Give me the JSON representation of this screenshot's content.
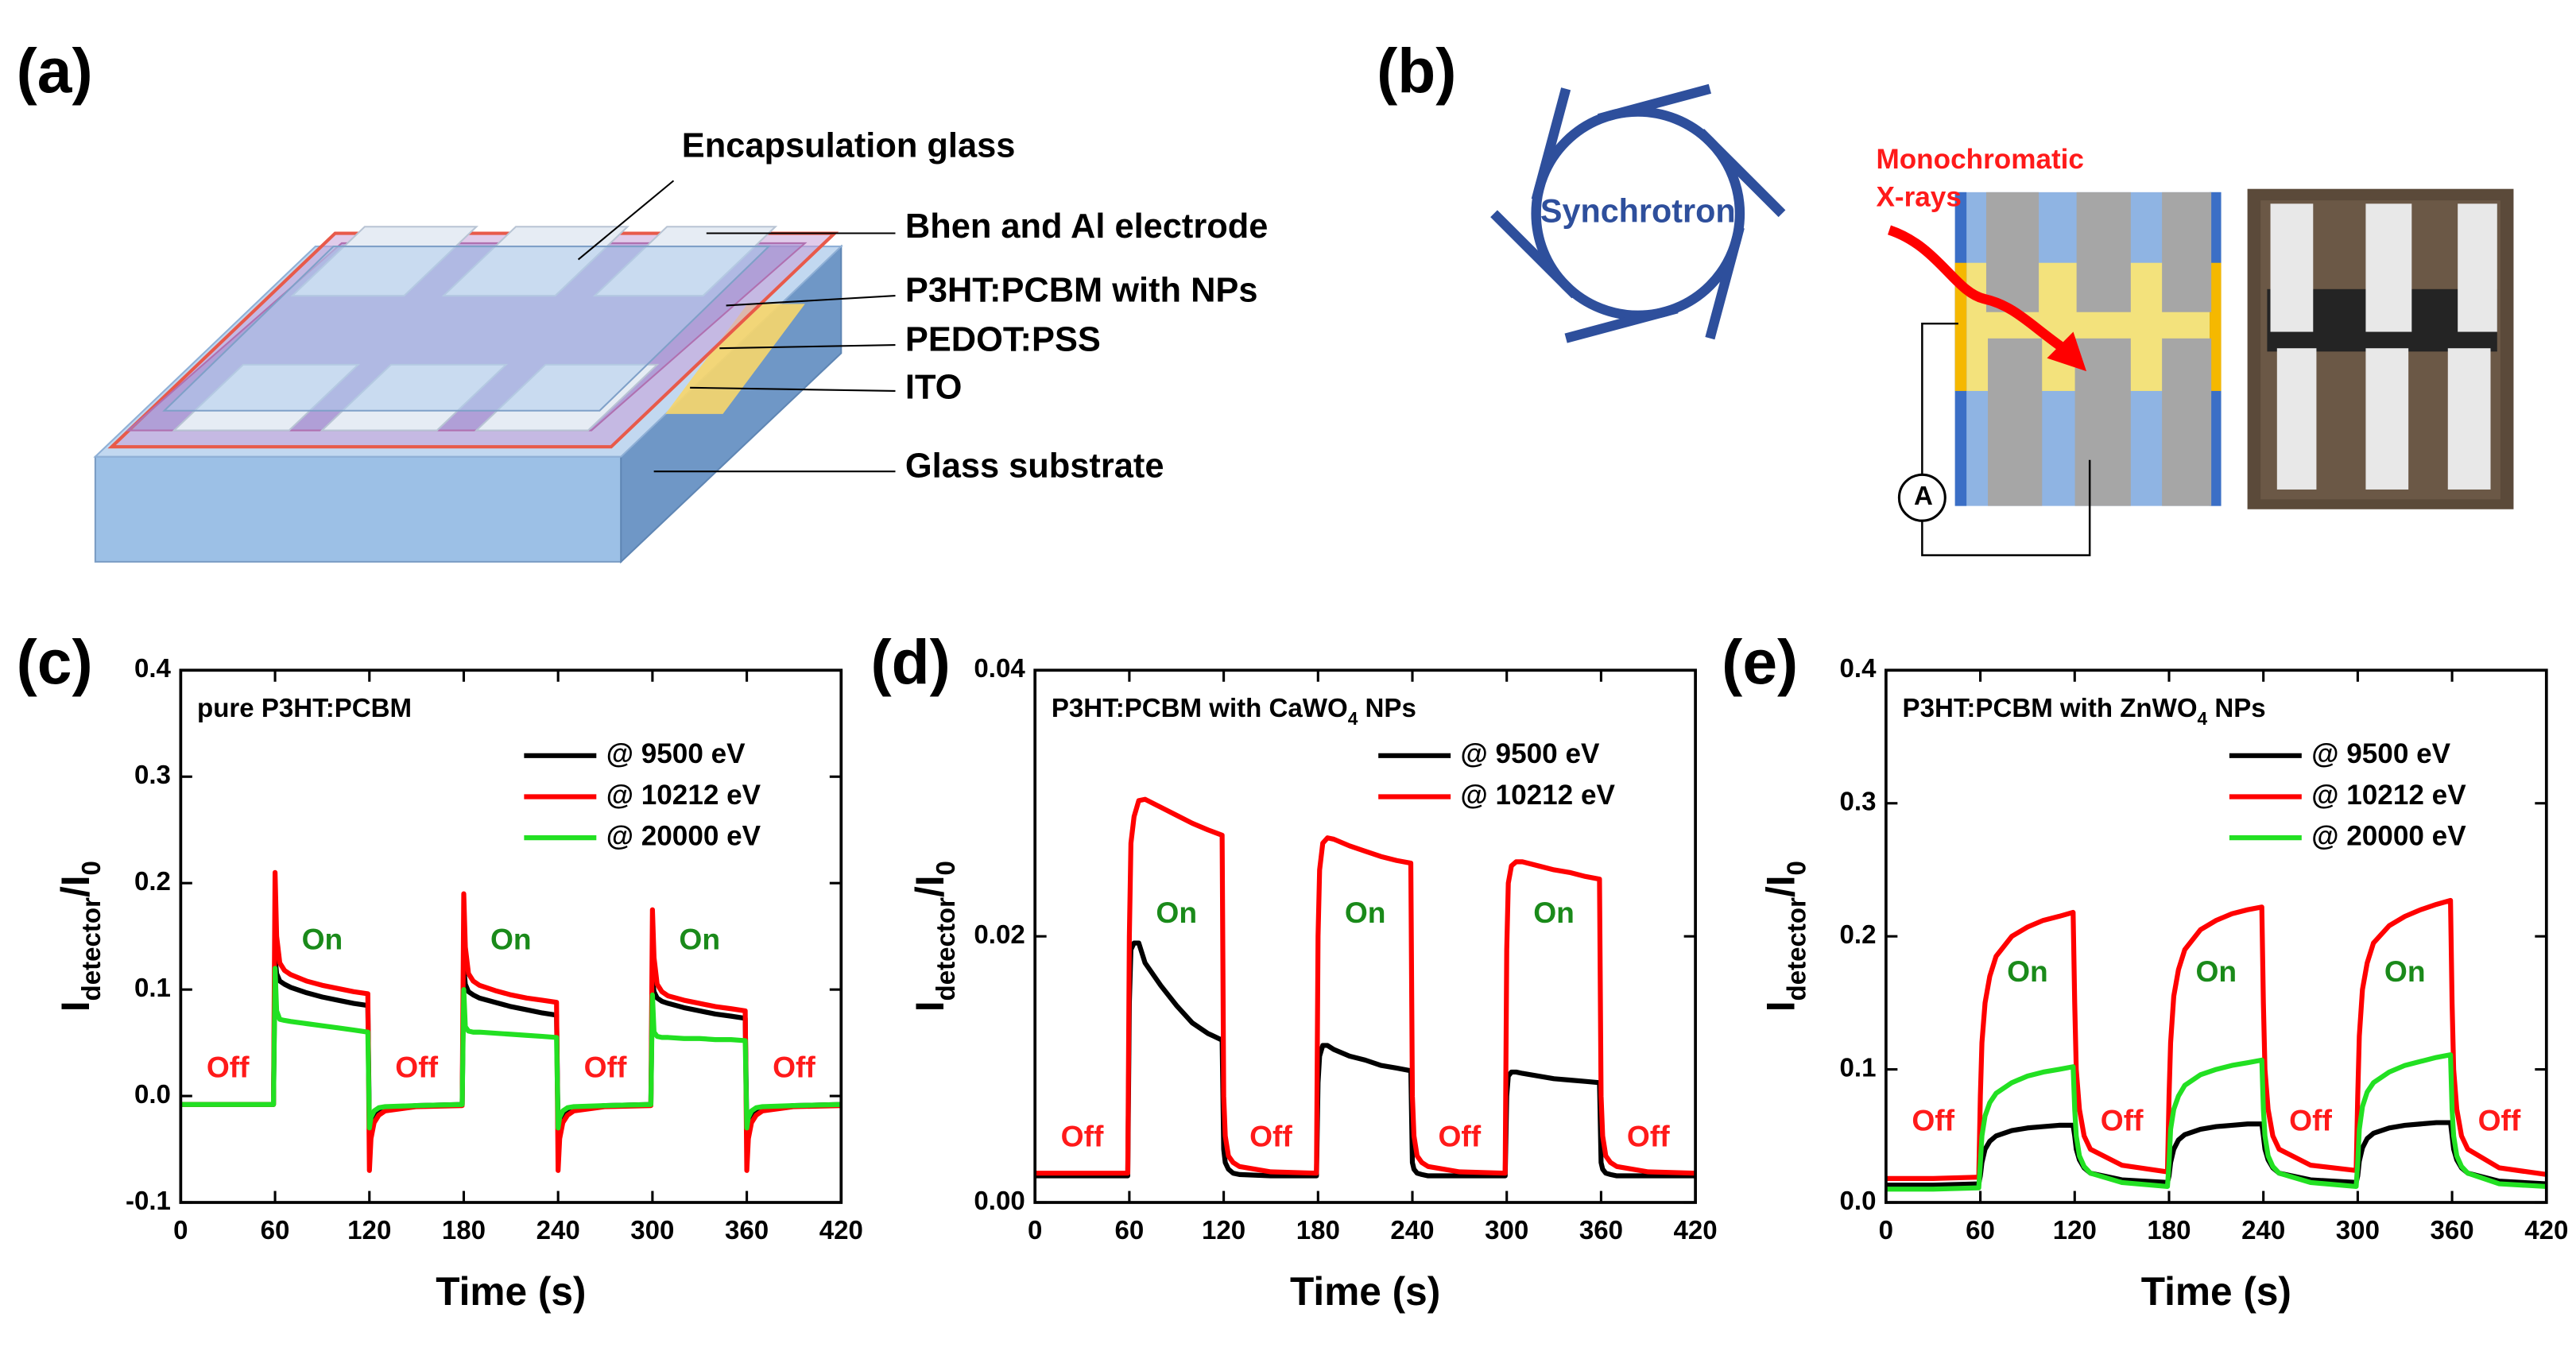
{
  "panel_a": {
    "label": "(a)",
    "callouts": [
      "Encapsulation glass",
      "Bhen and Al electrode",
      "P3HT:PCBM with NPs",
      "PEDOT:PSS",
      "ITO",
      "Glass substrate"
    ]
  },
  "panel_b": {
    "label": "(b)",
    "ring": "Synchrotron",
    "beam": [
      "Monochromatic",
      "X-rays"
    ],
    "meter": "A"
  },
  "chart_data": [
    {
      "type": "line",
      "label": "(c)",
      "title": [
        "pure P3HT:PCBM"
      ],
      "xlabel": "Time (s)",
      "ylabel": [
        "I",
        "detector",
        "/I",
        "0"
      ],
      "xlim": [
        0,
        420
      ],
      "xticks": [
        0,
        60,
        120,
        180,
        240,
        300,
        360,
        420
      ],
      "ylim": [
        -0.1,
        0.4
      ],
      "yticks": [
        -0.1,
        {
          "value": 0,
          "label": "0.0"
        },
        0.1,
        0.2,
        0.3,
        0.4
      ],
      "legend": "upper right",
      "annotations": [
        {
          "text": "Off",
          "color": "#ff1a1a"
        },
        {
          "text": "On",
          "color": "#1a8a1a"
        },
        {
          "text": "Off",
          "color": "#ff1a1a"
        },
        {
          "text": "On",
          "color": "#1a8a1a"
        },
        {
          "text": "Off",
          "color": "#ff1a1a"
        },
        {
          "text": "On",
          "color": "#1a8a1a"
        },
        {
          "text": "Off",
          "color": "#ff1a1a"
        }
      ],
      "x": [
        0,
        30,
        59,
        60,
        61,
        63,
        66,
        70,
        80,
        90,
        100,
        110,
        119,
        120,
        121,
        123,
        126,
        130,
        150,
        179,
        180,
        181,
        183,
        186,
        190,
        200,
        210,
        220,
        230,
        239,
        240,
        241,
        243,
        246,
        250,
        270,
        299,
        300,
        301,
        303,
        306,
        310,
        320,
        330,
        340,
        350,
        359,
        360,
        361,
        363,
        366,
        370,
        390,
        420
      ],
      "series": [
        {
          "name": "@ 9500 eV",
          "color": "#000000",
          "values": [
            -0.008,
            -0.008,
            -0.008,
            0.13,
            0.115,
            0.108,
            0.105,
            0.102,
            0.097,
            0.093,
            0.09,
            0.087,
            0.085,
            -0.03,
            -0.025,
            -0.018,
            -0.014,
            -0.012,
            -0.009,
            -0.008,
            0.12,
            0.105,
            0.098,
            0.095,
            0.092,
            0.088,
            0.084,
            0.081,
            0.078,
            0.076,
            -0.03,
            -0.025,
            -0.018,
            -0.014,
            -0.012,
            -0.009,
            -0.008,
            0.11,
            0.098,
            0.092,
            0.089,
            0.087,
            0.083,
            0.08,
            0.077,
            0.075,
            0.073,
            -0.03,
            -0.025,
            -0.018,
            -0.014,
            -0.012,
            -0.009,
            -0.008
          ]
        },
        {
          "name": "@ 10212 eV",
          "color": "#ff0000",
          "values": [
            -0.008,
            -0.008,
            -0.008,
            0.21,
            0.15,
            0.125,
            0.118,
            0.114,
            0.108,
            0.104,
            0.101,
            0.098,
            0.096,
            -0.07,
            -0.04,
            -0.025,
            -0.018,
            -0.014,
            -0.01,
            -0.009,
            0.19,
            0.14,
            0.115,
            0.108,
            0.104,
            0.099,
            0.095,
            0.092,
            0.09,
            0.088,
            -0.07,
            -0.04,
            -0.025,
            -0.018,
            -0.014,
            -0.01,
            -0.009,
            0.175,
            0.13,
            0.105,
            0.098,
            0.094,
            0.09,
            0.087,
            0.084,
            0.082,
            0.08,
            -0.07,
            -0.04,
            -0.025,
            -0.018,
            -0.014,
            -0.01,
            -0.009
          ]
        },
        {
          "name": "@ 20000 eV",
          "color": "#22e022",
          "values": [
            -0.008,
            -0.008,
            -0.008,
            0.12,
            0.08,
            0.072,
            0.071,
            0.07,
            0.068,
            0.066,
            0.064,
            0.062,
            0.06,
            -0.03,
            -0.02,
            -0.014,
            -0.011,
            -0.01,
            -0.009,
            -0.008,
            0.1,
            0.065,
            0.061,
            0.06,
            0.06,
            0.059,
            0.058,
            0.057,
            0.056,
            0.055,
            -0.03,
            -0.02,
            -0.014,
            -0.011,
            -0.01,
            -0.009,
            -0.008,
            0.095,
            0.06,
            0.056,
            0.055,
            0.055,
            0.054,
            0.054,
            0.053,
            0.053,
            0.052,
            -0.03,
            -0.02,
            -0.014,
            -0.011,
            -0.01,
            -0.009,
            -0.008
          ]
        }
      ]
    },
    {
      "type": "line",
      "label": "(d)",
      "title": [
        "P3HT:PCBM with CaWO",
        "4",
        " NPs"
      ],
      "xlabel": "Time (s)",
      "ylabel": [
        "I",
        "detector",
        "/I",
        "0"
      ],
      "xlim": [
        0,
        420
      ],
      "xticks": [
        0,
        60,
        120,
        180,
        240,
        300,
        360,
        420
      ],
      "ylim": [
        0,
        0.04
      ],
      "yticks": [
        {
          "value": 0,
          "label": "0.00"
        },
        0.02,
        {
          "value": 0.04,
          "label": "0.04"
        }
      ],
      "legend": "upper right",
      "annotations": [
        {
          "text": "Off",
          "color": "#ff1a1a"
        },
        {
          "text": "On",
          "color": "#1a8a1a"
        },
        {
          "text": "Off",
          "color": "#ff1a1a"
        },
        {
          "text": "On",
          "color": "#1a8a1a"
        },
        {
          "text": "Off",
          "color": "#ff1a1a"
        },
        {
          "text": "On",
          "color": "#1a8a1a"
        },
        {
          "text": "Off",
          "color": "#ff1a1a"
        }
      ],
      "x": [
        0,
        30,
        59,
        60,
        61,
        63,
        66,
        70,
        80,
        90,
        100,
        110,
        119,
        120,
        121,
        123,
        126,
        130,
        150,
        179,
        180,
        181,
        183,
        186,
        190,
        200,
        210,
        220,
        230,
        239,
        240,
        241,
        243,
        246,
        250,
        270,
        299,
        300,
        301,
        303,
        306,
        310,
        320,
        330,
        340,
        350,
        359,
        360,
        361,
        363,
        366,
        370,
        390,
        420
      ],
      "series": [
        {
          "name": "@ 9500 eV",
          "color": "#000000",
          "values": [
            0.002,
            0.002,
            0.002,
            0.015,
            0.019,
            0.0195,
            0.0195,
            0.018,
            0.0163,
            0.0148,
            0.0135,
            0.0127,
            0.0122,
            0.004,
            0.003,
            0.0025,
            0.0022,
            0.0021,
            0.002,
            0.002,
            0.009,
            0.011,
            0.0118,
            0.0118,
            0.0115,
            0.011,
            0.0107,
            0.0103,
            0.0101,
            0.0099,
            0.003,
            0.0025,
            0.0022,
            0.0021,
            0.002,
            0.002,
            0.002,
            0.008,
            0.0095,
            0.0098,
            0.0098,
            0.0097,
            0.0095,
            0.0093,
            0.0092,
            0.0091,
            0.009,
            0.003,
            0.0025,
            0.0022,
            0.0021,
            0.002,
            0.002,
            0.002
          ]
        },
        {
          "name": "@ 10212 eV",
          "color": "#ff0000",
          "values": [
            0.0022,
            0.0022,
            0.0022,
            0.02,
            0.027,
            0.029,
            0.0302,
            0.0303,
            0.0297,
            0.0291,
            0.0285,
            0.028,
            0.0276,
            0.008,
            0.005,
            0.0035,
            0.003,
            0.0027,
            0.0023,
            0.0022,
            0.02,
            0.025,
            0.027,
            0.0274,
            0.0273,
            0.0268,
            0.0264,
            0.026,
            0.0257,
            0.0255,
            0.008,
            0.005,
            0.0035,
            0.003,
            0.0027,
            0.0023,
            0.0022,
            0.019,
            0.024,
            0.0253,
            0.0256,
            0.0256,
            0.0253,
            0.025,
            0.0248,
            0.0245,
            0.0243,
            0.008,
            0.005,
            0.0035,
            0.003,
            0.0027,
            0.0023,
            0.0022
          ]
        }
      ]
    },
    {
      "type": "line",
      "label": "(e)",
      "title": [
        "P3HT:PCBM with ZnWO",
        "4",
        " NPs"
      ],
      "xlabel": "Time (s)",
      "ylabel": [
        "I",
        "detector",
        "/I",
        "0"
      ],
      "xlim": [
        0,
        420
      ],
      "xticks": [
        0,
        60,
        120,
        180,
        240,
        300,
        360,
        420
      ],
      "ylim": [
        0,
        0.4
      ],
      "yticks": [
        {
          "value": 0,
          "label": "0.0"
        },
        0.1,
        0.2,
        0.3,
        0.4
      ],
      "legend": "upper right",
      "annotations": [
        {
          "text": "Off",
          "color": "#ff1a1a"
        },
        {
          "text": "On",
          "color": "#1a8a1a"
        },
        {
          "text": "Off",
          "color": "#ff1a1a"
        },
        {
          "text": "On",
          "color": "#1a8a1a"
        },
        {
          "text": "Off",
          "color": "#ff1a1a"
        },
        {
          "text": "On",
          "color": "#1a8a1a"
        },
        {
          "text": "Off",
          "color": "#ff1a1a"
        }
      ],
      "x": [
        0,
        30,
        59,
        60,
        61,
        63,
        66,
        70,
        80,
        90,
        100,
        110,
        119,
        120,
        121,
        123,
        126,
        130,
        150,
        179,
        180,
        181,
        183,
        186,
        190,
        200,
        210,
        220,
        230,
        239,
        240,
        241,
        243,
        246,
        250,
        270,
        299,
        300,
        301,
        303,
        306,
        310,
        320,
        330,
        340,
        350,
        359,
        360,
        361,
        363,
        366,
        370,
        390,
        420
      ],
      "series": [
        {
          "name": "@ 9500 eV",
          "color": "#000000",
          "values": [
            0.013,
            0.013,
            0.014,
            0.02,
            0.03,
            0.04,
            0.046,
            0.05,
            0.054,
            0.056,
            0.057,
            0.058,
            0.058,
            0.05,
            0.04,
            0.032,
            0.026,
            0.022,
            0.017,
            0.015,
            0.02,
            0.03,
            0.04,
            0.047,
            0.051,
            0.055,
            0.057,
            0.058,
            0.059,
            0.059,
            0.05,
            0.04,
            0.032,
            0.026,
            0.022,
            0.017,
            0.015,
            0.02,
            0.031,
            0.041,
            0.048,
            0.052,
            0.056,
            0.058,
            0.059,
            0.06,
            0.06,
            0.05,
            0.04,
            0.032,
            0.026,
            0.022,
            0.016,
            0.014
          ]
        },
        {
          "name": "@ 10212 eV",
          "color": "#ff0000",
          "values": [
            0.018,
            0.018,
            0.019,
            0.08,
            0.12,
            0.15,
            0.17,
            0.185,
            0.2,
            0.207,
            0.212,
            0.215,
            0.218,
            0.15,
            0.1,
            0.07,
            0.05,
            0.04,
            0.028,
            0.023,
            0.08,
            0.12,
            0.155,
            0.175,
            0.19,
            0.205,
            0.212,
            0.217,
            0.22,
            0.222,
            0.15,
            0.1,
            0.07,
            0.05,
            0.04,
            0.028,
            0.024,
            0.08,
            0.125,
            0.16,
            0.18,
            0.195,
            0.208,
            0.215,
            0.22,
            0.224,
            0.227,
            0.15,
            0.1,
            0.07,
            0.05,
            0.04,
            0.026,
            0.021
          ]
        },
        {
          "name": "@ 20000 eV",
          "color": "#22e022",
          "values": [
            0.01,
            0.01,
            0.011,
            0.03,
            0.05,
            0.065,
            0.075,
            0.082,
            0.09,
            0.095,
            0.098,
            0.1,
            0.102,
            0.07,
            0.05,
            0.035,
            0.027,
            0.022,
            0.015,
            0.012,
            0.03,
            0.055,
            0.07,
            0.08,
            0.088,
            0.096,
            0.1,
            0.103,
            0.105,
            0.107,
            0.07,
            0.05,
            0.035,
            0.027,
            0.022,
            0.015,
            0.012,
            0.03,
            0.055,
            0.072,
            0.083,
            0.09,
            0.098,
            0.103,
            0.106,
            0.109,
            0.111,
            0.07,
            0.05,
            0.035,
            0.027,
            0.022,
            0.014,
            0.012
          ]
        }
      ]
    }
  ]
}
